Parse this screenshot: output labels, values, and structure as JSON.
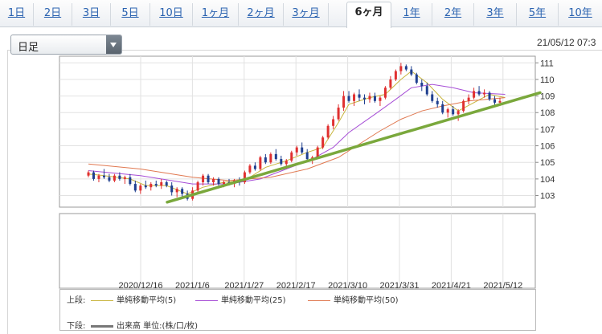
{
  "tabs": [
    {
      "label": "1日"
    },
    {
      "label": "2日"
    },
    {
      "label": "3日"
    },
    {
      "label": "5日"
    },
    {
      "label": "10日"
    },
    {
      "label": "1ヶ月"
    },
    {
      "label": "2ヶ月"
    },
    {
      "label": "3ヶ月"
    },
    {
      "label": "6ヶ月",
      "active": true
    },
    {
      "label": "1年"
    },
    {
      "label": "2年"
    },
    {
      "label": "3年"
    },
    {
      "label": "5年"
    },
    {
      "label": "10年"
    }
  ],
  "interval_select": {
    "value": "日足"
  },
  "timestamp": "21/05/12 07:3",
  "legend": {
    "upper_label": "上段:",
    "lower_label": "下段:",
    "ma5": "単純移動平均(5)",
    "ma25": "単純移動平均(25)",
    "ma50": "単純移動平均(50)",
    "volume": "出来高 単位:(株/口/枚)"
  },
  "colors": {
    "up": "#e03030",
    "down": "#1f3f8f",
    "ma5": "#c8b43c",
    "ma25": "#a64dd6",
    "ma50": "#e07850",
    "trendline": "#7aa83c",
    "tab_link": "#2a62b0"
  },
  "chart_data": {
    "type": "candlestick",
    "y_axis": {
      "ticks": [
        "103",
        "104",
        "105",
        "106",
        "107",
        "108",
        "109",
        "110",
        "111"
      ],
      "range": [
        102.3,
        111.4
      ],
      "side": "right"
    },
    "x_axis": {
      "ticks": [
        "2020/12/16",
        "2021/1/6",
        "2021/1/27",
        "2021/2/17",
        "2021/3/10",
        "2021/3/31",
        "2021/4/21",
        "2021/5/12"
      ]
    },
    "grid": true,
    "candles": [
      [
        104.2,
        104.5,
        104.1,
        104.4
      ],
      [
        104.4,
        104.5,
        103.9,
        104.0
      ],
      [
        104.0,
        104.3,
        103.8,
        104.2
      ],
      [
        104.2,
        104.6,
        104.0,
        104.1
      ],
      [
        104.1,
        104.3,
        103.8,
        103.9
      ],
      [
        103.9,
        104.3,
        103.8,
        104.2
      ],
      [
        104.2,
        104.4,
        103.9,
        104.0
      ],
      [
        104.0,
        104.2,
        103.7,
        104.1
      ],
      [
        104.1,
        104.3,
        103.6,
        103.7
      ],
      [
        103.7,
        103.9,
        103.2,
        103.3
      ],
      [
        103.3,
        103.7,
        103.1,
        103.6
      ],
      [
        103.6,
        103.9,
        103.4,
        103.5
      ],
      [
        103.5,
        103.8,
        103.3,
        103.7
      ],
      [
        103.7,
        103.9,
        103.5,
        103.6
      ],
      [
        103.6,
        104.0,
        103.4,
        103.8
      ],
      [
        103.8,
        103.9,
        103.5,
        103.6
      ],
      [
        103.6,
        103.8,
        103.0,
        103.2
      ],
      [
        103.2,
        103.5,
        102.9,
        103.4
      ],
      [
        103.4,
        103.5,
        102.9,
        103.1
      ],
      [
        103.1,
        103.3,
        102.7,
        102.8
      ],
      [
        102.8,
        103.5,
        102.7,
        103.3
      ],
      [
        103.3,
        103.9,
        103.2,
        103.8
      ],
      [
        103.8,
        104.3,
        103.6,
        104.2
      ],
      [
        104.2,
        104.3,
        103.7,
        103.8
      ],
      [
        103.8,
        104.1,
        103.6,
        104.0
      ],
      [
        104.0,
        104.1,
        103.6,
        103.7
      ],
      [
        103.7,
        103.9,
        103.5,
        103.8
      ],
      [
        103.8,
        104.0,
        103.6,
        103.7
      ],
      [
        103.7,
        104.0,
        103.5,
        103.9
      ],
      [
        103.9,
        104.1,
        103.6,
        103.8
      ],
      [
        103.8,
        104.5,
        103.7,
        104.4
      ],
      [
        104.4,
        104.9,
        104.3,
        104.8
      ],
      [
        104.8,
        105.0,
        104.5,
        104.6
      ],
      [
        104.6,
        105.4,
        104.5,
        105.3
      ],
      [
        105.3,
        105.5,
        104.9,
        105.0
      ],
      [
        105.0,
        105.6,
        104.9,
        105.5
      ],
      [
        105.5,
        105.8,
        105.1,
        105.2
      ],
      [
        105.2,
        105.4,
        104.8,
        104.9
      ],
      [
        104.9,
        105.2,
        104.6,
        105.1
      ],
      [
        105.1,
        105.7,
        105.0,
        105.6
      ],
      [
        105.6,
        106.0,
        105.4,
        105.9
      ],
      [
        105.9,
        106.2,
        105.5,
        105.6
      ],
      [
        105.6,
        105.8,
        105.1,
        105.2
      ],
      [
        105.2,
        105.4,
        104.9,
        105.3
      ],
      [
        105.3,
        106.0,
        105.2,
        105.9
      ],
      [
        105.9,
        106.6,
        105.8,
        106.5
      ],
      [
        106.5,
        107.3,
        106.4,
        107.2
      ],
      [
        107.2,
        107.8,
        107.0,
        107.6
      ],
      [
        107.6,
        108.5,
        107.5,
        108.3
      ],
      [
        108.3,
        109.3,
        108.1,
        109.0
      ],
      [
        109.0,
        109.3,
        108.6,
        108.7
      ],
      [
        108.7,
        109.2,
        108.4,
        109.1
      ],
      [
        109.1,
        109.4,
        108.7,
        108.9
      ],
      [
        108.9,
        109.1,
        108.5,
        108.8
      ],
      [
        108.8,
        109.2,
        108.6,
        109.0
      ],
      [
        109.0,
        109.2,
        108.6,
        108.7
      ],
      [
        108.7,
        109.0,
        108.4,
        108.9
      ],
      [
        108.9,
        109.6,
        108.8,
        109.5
      ],
      [
        109.5,
        110.2,
        109.4,
        110.0
      ],
      [
        110.0,
        110.6,
        109.9,
        110.5
      ],
      [
        110.5,
        111.0,
        110.3,
        110.8
      ],
      [
        110.8,
        110.9,
        110.5,
        110.6
      ],
      [
        110.6,
        110.8,
        110.2,
        110.3
      ],
      [
        110.3,
        110.4,
        109.7,
        109.8
      ],
      [
        109.8,
        110.0,
        109.3,
        109.6
      ],
      [
        109.6,
        109.8,
        109.0,
        109.1
      ],
      [
        109.1,
        109.3,
        108.6,
        108.7
      ],
      [
        108.7,
        108.9,
        108.3,
        108.5
      ],
      [
        108.5,
        108.7,
        107.9,
        108.0
      ],
      [
        108.0,
        108.3,
        107.7,
        108.2
      ],
      [
        108.2,
        108.4,
        107.8,
        107.9
      ],
      [
        107.9,
        108.2,
        107.5,
        108.1
      ],
      [
        108.1,
        108.8,
        108.0,
        108.7
      ],
      [
        108.7,
        109.1,
        108.5,
        108.9
      ],
      [
        108.9,
        109.5,
        108.8,
        109.3
      ],
      [
        109.3,
        109.6,
        109.0,
        109.1
      ],
      [
        109.1,
        109.4,
        108.9,
        109.2
      ],
      [
        109.2,
        109.3,
        108.7,
        108.8
      ],
      [
        108.8,
        109.0,
        108.4,
        108.6
      ],
      [
        108.6,
        108.9,
        108.4,
        108.7
      ]
    ],
    "ma_series": [
      {
        "key": "ma5",
        "points": [
          [
            0,
            104.3
          ],
          [
            3,
            104.2
          ],
          [
            8,
            104.0
          ],
          [
            11,
            103.6
          ],
          [
            15,
            103.6
          ],
          [
            19,
            103.1
          ],
          [
            22,
            103.5
          ],
          [
            26,
            103.8
          ],
          [
            30,
            103.9
          ],
          [
            34,
            104.7
          ],
          [
            38,
            105.1
          ],
          [
            42,
            105.6
          ],
          [
            45,
            105.9
          ],
          [
            48,
            107.4
          ],
          [
            50,
            108.5
          ],
          [
            54,
            108.9
          ],
          [
            57,
            109.1
          ],
          [
            60,
            110.0
          ],
          [
            62,
            110.5
          ],
          [
            65,
            109.8
          ],
          [
            68,
            108.8
          ],
          [
            71,
            108.1
          ],
          [
            74,
            108.6
          ],
          [
            77,
            109.1
          ],
          [
            80,
            108.9
          ]
        ]
      },
      {
        "key": "ma25",
        "points": [
          [
            0,
            104.5
          ],
          [
            10,
            104.2
          ],
          [
            20,
            103.7
          ],
          [
            27,
            103.7
          ],
          [
            33,
            104.0
          ],
          [
            38,
            104.6
          ],
          [
            43,
            105.2
          ],
          [
            47,
            105.9
          ],
          [
            50,
            106.8
          ],
          [
            55,
            107.9
          ],
          [
            59,
            108.8
          ],
          [
            62,
            109.5
          ],
          [
            66,
            109.7
          ],
          [
            70,
            109.5
          ],
          [
            74,
            109.2
          ],
          [
            80,
            109.1
          ]
        ]
      },
      {
        "key": "ma50",
        "points": [
          [
            0,
            104.9
          ],
          [
            10,
            104.6
          ],
          [
            20,
            104.1
          ],
          [
            27,
            103.9
          ],
          [
            35,
            104.1
          ],
          [
            42,
            104.6
          ],
          [
            48,
            105.3
          ],
          [
            52,
            106.1
          ],
          [
            56,
            106.9
          ],
          [
            60,
            107.6
          ],
          [
            64,
            108.1
          ],
          [
            68,
            108.4
          ],
          [
            73,
            108.7
          ],
          [
            80,
            108.9
          ]
        ]
      }
    ],
    "trendline": [
      [
        102.6,
        0.19
      ],
      [
        109.2,
        1.0
      ]
    ]
  }
}
